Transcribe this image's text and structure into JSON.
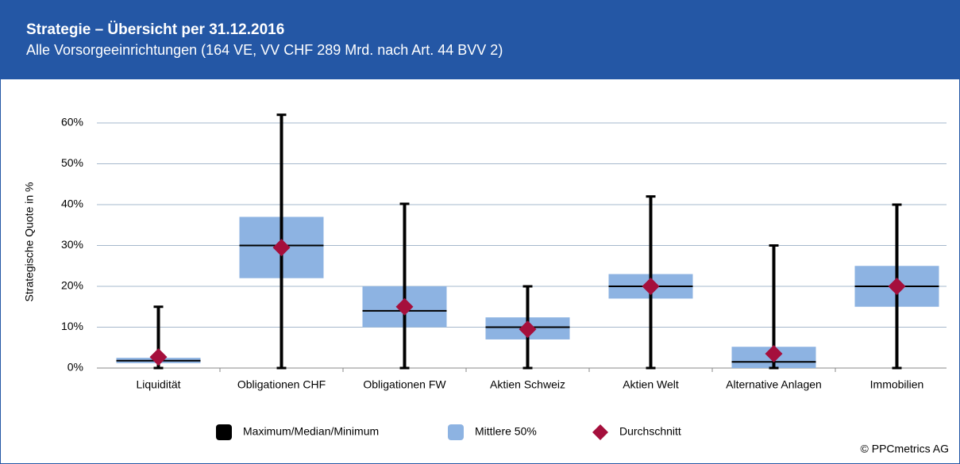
{
  "chart_data": {
    "type": "box",
    "title": "Strategie – Übersicht per 31.12.2016",
    "subtitle": "Alle Vorsorgeeinrichtungen (164 VE, VV CHF 289 Mrd. nach Art. 44 BVV 2)",
    "y_label": "Strategische Quote in %",
    "categories": [
      "Liquidität",
      "Obligationen CHF",
      "Obligationen FW",
      "Aktien Schweiz",
      "Aktien Welt",
      "Alternative Anlagen",
      "Immobilien"
    ],
    "min": [
      0,
      0,
      0,
      0,
      0,
      0,
      0
    ],
    "q1": [
      1.2,
      22,
      10,
      7,
      17,
      0,
      15
    ],
    "median": [
      1.8,
      30,
      14,
      10,
      20,
      1.5,
      20
    ],
    "q3": [
      2.5,
      37,
      20,
      12.4,
      23,
      5.2,
      25
    ],
    "max": [
      15,
      62,
      40.2,
      20,
      42,
      30,
      40
    ],
    "mean": [
      2.7,
      29.5,
      15,
      9.5,
      20,
      3.5,
      20
    ],
    "legend": [
      {
        "name": "Maximum/Median/Minimum",
        "color": "#000000"
      },
      {
        "name": "Mittlere 50%",
        "color": "#8db3e2"
      },
      {
        "name": "Durchschnitt",
        "color": "#a50f3c"
      }
    ],
    "ylim": [
      0,
      60
    ],
    "yticks": [
      {
        "value": 0,
        "label": "0%"
      },
      {
        "value": 10,
        "label": "10%"
      },
      {
        "value": 20,
        "label": "20%"
      },
      {
        "value": 30,
        "label": "30%"
      },
      {
        "value": 40,
        "label": "40%"
      },
      {
        "value": 50,
        "label": "50%"
      },
      {
        "value": 60,
        "label": "60%"
      }
    ],
    "grid": true,
    "copyright": "© PPCmetrics AG"
  }
}
